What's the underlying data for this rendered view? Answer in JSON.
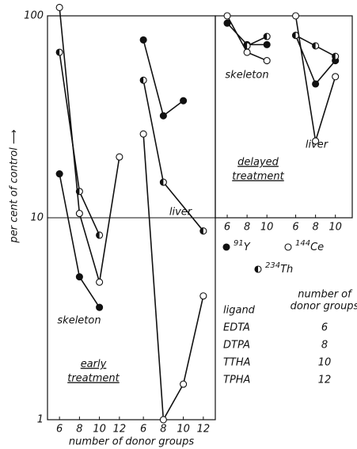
{
  "chart_data": [
    {
      "type": "line",
      "log_y": true,
      "ylim": [
        1,
        100
      ],
      "yticks": [
        1,
        10,
        100
      ],
      "grid": true,
      "ylabel": "per cent of control ⟶",
      "xlabel": "number of donor groups",
      "annotation": [
        "early",
        "treatment"
      ],
      "groups": [
        {
          "label": "skeleton",
          "xlim": [
            4.8,
            13.2
          ],
          "xticks": [
            6,
            8,
            10,
            12
          ],
          "series": [
            {
              "marker": "filled",
              "x": [
                6,
                8,
                10
              ],
              "values": [
                16.5,
                5.1,
                3.6
              ]
            },
            {
              "marker": "open",
              "x": [
                6,
                8,
                10,
                12
              ],
              "values": [
                110,
                10.5,
                4.8,
                20
              ]
            },
            {
              "marker": "half",
              "x": [
                6,
                8,
                10
              ],
              "values": [
                66,
                13.5,
                8.2
              ]
            }
          ]
        },
        {
          "label": "liver",
          "xlim": [
            4.8,
            13.2
          ],
          "xticks": [
            6,
            8,
            10,
            12
          ],
          "series": [
            {
              "marker": "filled",
              "x": [
                6,
                8,
                10
              ],
              "values": [
                76,
                32,
                38
              ]
            },
            {
              "marker": "half",
              "x": [
                6,
                8,
                12
              ],
              "values": [
                48,
                15,
                8.6
              ]
            },
            {
              "marker": "open",
              "x": [
                6,
                8,
                10,
                12
              ],
              "values": [
                26,
                1,
                1.5,
                4.1
              ]
            }
          ]
        }
      ]
    },
    {
      "type": "line",
      "log_y": true,
      "ylim": [
        10,
        100
      ],
      "annotation": [
        "delayed",
        "treatment"
      ],
      "groups": [
        {
          "label": "skeleton",
          "xlim": [
            4.8,
            11.7
          ],
          "xticks": [
            6,
            8,
            10
          ],
          "series": [
            {
              "marker": "filled",
              "x": [
                6,
                8,
                10
              ],
              "values": [
                92,
                72,
                72
              ]
            },
            {
              "marker": "half",
              "x": [
                8,
                10
              ],
              "values": [
                71,
                79
              ]
            },
            {
              "marker": "open",
              "x": [
                6,
                8,
                10
              ],
              "values": [
                100,
                66,
                60
              ]
            }
          ]
        },
        {
          "label": "liver",
          "xlim": [
            4.8,
            11.7
          ],
          "xticks": [
            6,
            8,
            10
          ],
          "series": [
            {
              "marker": "filled",
              "x": [
                6,
                8,
                10
              ],
              "values": [
                80,
                46,
                60
              ]
            },
            {
              "marker": "half",
              "x": [
                6,
                8,
                10
              ],
              "values": [
                80,
                71,
                63
              ]
            },
            {
              "marker": "open",
              "x": [
                6,
                8,
                10
              ],
              "values": [
                100,
                24,
                50
              ]
            }
          ]
        }
      ]
    }
  ],
  "legend": [
    {
      "marker": "filled",
      "mass": "91",
      "symbol": "Y"
    },
    {
      "marker": "open",
      "mass": "144",
      "symbol": "Ce"
    },
    {
      "marker": "half",
      "mass": "234",
      "symbol": "Th"
    }
  ],
  "table": {
    "header": [
      "ligand",
      [
        "number of",
        "donor groups"
      ]
    ],
    "rows": [
      [
        "EDTA",
        6
      ],
      [
        "DTPA",
        8
      ],
      [
        "TTHA",
        10
      ],
      [
        "TPHA",
        12
      ]
    ]
  }
}
